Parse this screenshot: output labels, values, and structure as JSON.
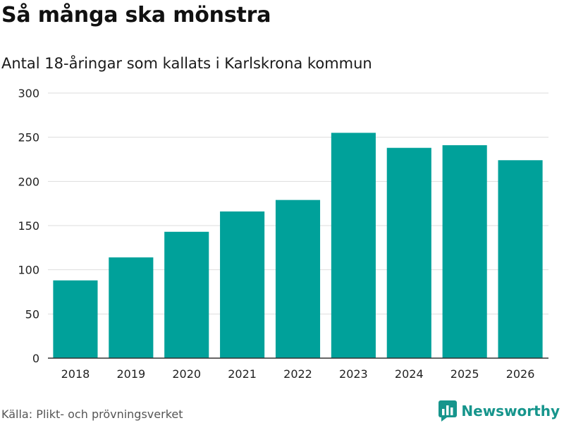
{
  "title": "Så många ska mönstra",
  "subtitle": "Antal 18-åringar som kallats i Karlskrona kommun",
  "source": "Källa: Plikt- och prövningsverket",
  "brand": {
    "name": "Newsworthy",
    "icon": "bar-chart-logo-icon",
    "color": "#16958c"
  },
  "colors": {
    "bar": "#00a19a",
    "grid": "#dddddd",
    "axis": "#333333"
  },
  "chart_data": {
    "type": "bar",
    "title": "Så många ska mönstra",
    "subtitle": "Antal 18-åringar som kallats i Karlskrona kommun",
    "xlabel": "",
    "ylabel": "",
    "categories": [
      "2018",
      "2019",
      "2020",
      "2021",
      "2022",
      "2023",
      "2024",
      "2025",
      "2026"
    ],
    "values": [
      88,
      114,
      143,
      166,
      179,
      255,
      238,
      241,
      224
    ],
    "ylim": [
      0,
      300
    ],
    "yticks": [
      0,
      50,
      100,
      150,
      200,
      250,
      300
    ],
    "grid": true,
    "legend": "none"
  }
}
